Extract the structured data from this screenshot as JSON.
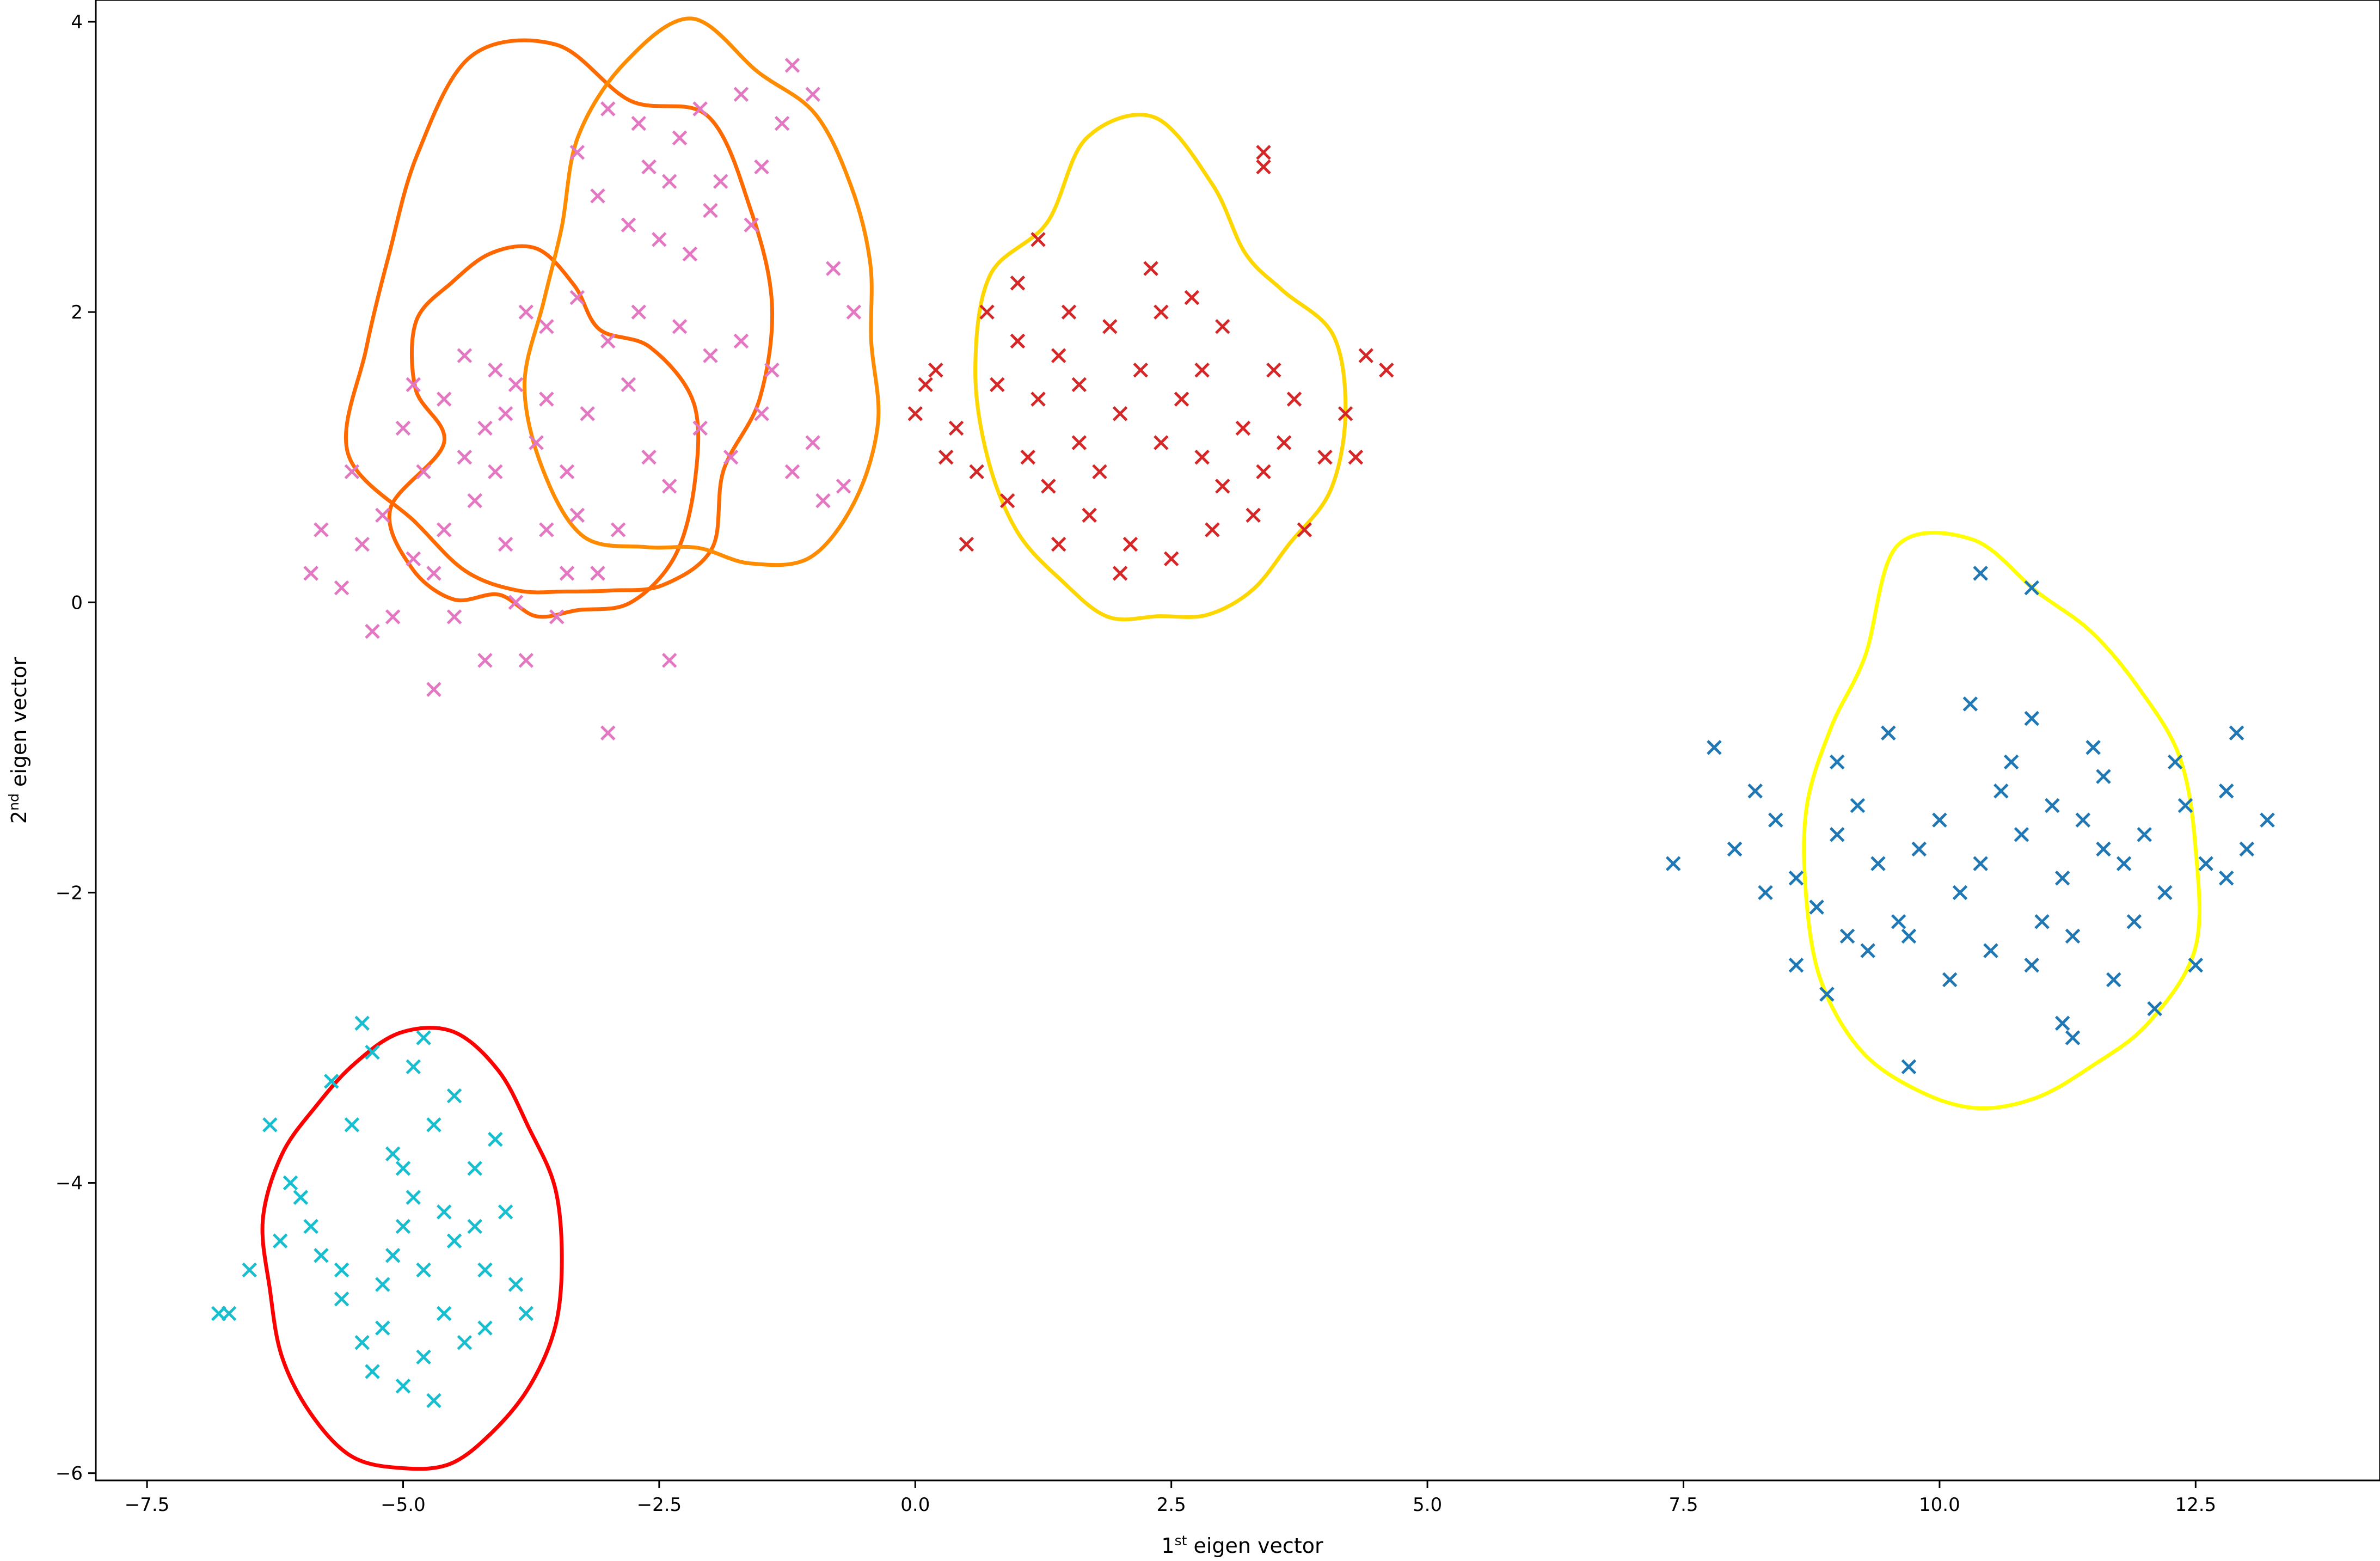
{
  "chart_data": {
    "type": "scatter",
    "xlabel": {
      "base": "1",
      "sup": "st",
      "rest": " eigen vector"
    },
    "ylabel": {
      "base": "2",
      "sup": "nd",
      "rest": " eigen vector"
    },
    "xlim": [
      -8.0,
      14.3
    ],
    "ylim": [
      -6.05,
      4.15
    ],
    "xticks": [
      -7.5,
      -5.0,
      -2.5,
      0.0,
      2.5,
      5.0,
      7.5,
      10.0,
      12.5
    ],
    "xtick_labels": [
      "−7.5",
      "−5.0",
      "−2.5",
      "0.0",
      "2.5",
      "5.0",
      "7.5",
      "10.0",
      "12.5"
    ],
    "yticks": [
      -6,
      -4,
      -2,
      0,
      2,
      4
    ],
    "ytick_labels": [
      "−6",
      "−4",
      "−2",
      "0",
      "2",
      "4"
    ],
    "grid": false,
    "marker": "x",
    "clusters": [
      {
        "color": "#e377c2",
        "center": [
          -3.8,
          1.1
        ],
        "points": [
          [
            -4.2,
            1.2
          ],
          [
            -4.0,
            1.3
          ],
          [
            -4.4,
            1.0
          ],
          [
            -4.1,
            0.9
          ],
          [
            -3.9,
            1.5
          ],
          [
            -4.6,
            1.4
          ],
          [
            -4.3,
            0.7
          ],
          [
            -3.7,
            1.1
          ],
          [
            -4.8,
            0.9
          ],
          [
            -5.0,
            1.2
          ],
          [
            -5.2,
            0.6
          ],
          [
            -4.9,
            0.3
          ],
          [
            -5.4,
            0.4
          ],
          [
            -5.6,
            0.1
          ],
          [
            -5.8,
            0.5
          ],
          [
            -5.3,
            -0.2
          ],
          [
            -4.5,
            -0.1
          ],
          [
            -4.7,
            0.2
          ],
          [
            -3.6,
            0.5
          ],
          [
            -3.3,
            0.6
          ],
          [
            -3.5,
            -0.1
          ],
          [
            -3.1,
            0.2
          ],
          [
            -2.9,
            0.5
          ],
          [
            -3.4,
            0.9
          ],
          [
            -3.2,
            1.3
          ],
          [
            -2.8,
            1.5
          ],
          [
            -2.6,
            1.0
          ],
          [
            -2.4,
            0.8
          ],
          [
            -2.1,
            1.2
          ],
          [
            -1.8,
            1.0
          ],
          [
            -1.5,
            1.3
          ],
          [
            -1.2,
            0.9
          ],
          [
            -0.9,
            0.7
          ],
          [
            -1.0,
            1.1
          ],
          [
            -1.4,
            1.6
          ],
          [
            -1.7,
            1.8
          ],
          [
            -2.0,
            1.7
          ],
          [
            -2.3,
            1.9
          ],
          [
            -2.7,
            2.0
          ],
          [
            -3.0,
            1.8
          ],
          [
            -3.3,
            2.1
          ],
          [
            -3.6,
            1.9
          ],
          [
            -3.8,
            2.0
          ],
          [
            -2.5,
            2.5
          ],
          [
            -2.2,
            2.4
          ],
          [
            -2.0,
            2.7
          ],
          [
            -2.4,
            2.9
          ],
          [
            -2.8,
            2.6
          ],
          [
            -3.1,
            2.8
          ],
          [
            -3.3,
            3.1
          ],
          [
            -2.6,
            3.0
          ],
          [
            -2.3,
            3.2
          ],
          [
            -1.9,
            2.9
          ],
          [
            -1.6,
            2.6
          ],
          [
            -1.5,
            3.0
          ],
          [
            -1.3,
            3.3
          ],
          [
            -1.0,
            3.5
          ],
          [
            -1.2,
            3.7
          ],
          [
            -1.7,
            3.5
          ],
          [
            -2.1,
            3.4
          ],
          [
            -2.7,
            3.3
          ],
          [
            -3.0,
            3.4
          ],
          [
            -0.8,
            2.3
          ],
          [
            -0.6,
            2.0
          ],
          [
            -0.7,
            0.8
          ],
          [
            -4.0,
            0.4
          ],
          [
            -4.4,
            1.7
          ],
          [
            -4.9,
            1.5
          ],
          [
            -5.5,
            0.9
          ],
          [
            -5.9,
            0.2
          ],
          [
            -4.2,
            -0.4
          ],
          [
            -3.8,
            -0.4
          ],
          [
            -3.0,
            -0.9
          ],
          [
            -2.4,
            -0.4
          ],
          [
            -4.7,
            -0.6
          ],
          [
            -3.9,
            0.0
          ],
          [
            -3.6,
            1.4
          ],
          [
            -4.6,
            0.5
          ],
          [
            -4.1,
            1.6
          ],
          [
            -3.4,
            0.2
          ],
          [
            -5.1,
            -0.1
          ]
        ]
      },
      {
        "color": "#d62728",
        "center": [
          2.0,
          1.2
        ],
        "points": [
          [
            0.0,
            1.3
          ],
          [
            0.2,
            1.6
          ],
          [
            0.4,
            1.2
          ],
          [
            0.6,
            0.9
          ],
          [
            0.8,
            1.5
          ],
          [
            1.0,
            1.8
          ],
          [
            1.2,
            1.4
          ],
          [
            1.4,
            1.7
          ],
          [
            1.6,
            1.1
          ],
          [
            1.8,
            0.9
          ],
          [
            2.0,
            1.3
          ],
          [
            2.2,
            1.6
          ],
          [
            2.4,
            2.0
          ],
          [
            2.6,
            1.4
          ],
          [
            2.8,
            1.0
          ],
          [
            3.0,
            0.8
          ],
          [
            3.2,
            1.2
          ],
          [
            3.4,
            0.9
          ],
          [
            3.6,
            1.1
          ],
          [
            3.8,
            0.5
          ],
          [
            4.0,
            1.0
          ],
          [
            4.2,
            1.3
          ],
          [
            4.4,
            1.7
          ],
          [
            4.6,
            1.6
          ],
          [
            0.5,
            0.4
          ],
          [
            0.9,
            0.7
          ],
          [
            1.3,
            0.8
          ],
          [
            1.7,
            0.6
          ],
          [
            2.1,
            0.4
          ],
          [
            2.5,
            0.3
          ],
          [
            2.9,
            0.5
          ],
          [
            3.3,
            0.6
          ],
          [
            1.0,
            2.2
          ],
          [
            1.5,
            2.0
          ],
          [
            1.9,
            1.9
          ],
          [
            2.3,
            2.3
          ],
          [
            2.7,
            2.1
          ],
          [
            3.0,
            1.9
          ],
          [
            3.5,
            1.6
          ],
          [
            0.7,
            2.0
          ],
          [
            1.2,
            2.5
          ],
          [
            3.4,
            3.0
          ],
          [
            3.4,
            3.1
          ],
          [
            1.1,
            1.0
          ],
          [
            1.6,
            1.5
          ],
          [
            2.4,
            1.1
          ],
          [
            2.0,
            0.2
          ],
          [
            0.3,
            1.0
          ],
          [
            0.1,
            1.5
          ],
          [
            3.7,
            1.4
          ],
          [
            4.3,
            1.0
          ],
          [
            2.8,
            1.6
          ],
          [
            1.4,
            0.4
          ]
        ]
      },
      {
        "color": "#1f77b4",
        "center": [
          10.8,
          -2.0
        ],
        "points": [
          [
            7.4,
            -1.8
          ],
          [
            7.8,
            -1.0
          ],
          [
            8.0,
            -1.7
          ],
          [
            8.2,
            -1.3
          ],
          [
            8.4,
            -1.5
          ],
          [
            8.6,
            -1.9
          ],
          [
            8.8,
            -2.1
          ],
          [
            9.0,
            -1.6
          ],
          [
            9.2,
            -1.4
          ],
          [
            9.4,
            -1.8
          ],
          [
            9.6,
            -2.2
          ],
          [
            9.8,
            -1.7
          ],
          [
            10.0,
            -1.5
          ],
          [
            10.2,
            -2.0
          ],
          [
            10.4,
            -1.8
          ],
          [
            10.6,
            -1.3
          ],
          [
            10.8,
            -1.6
          ],
          [
            11.0,
            -2.2
          ],
          [
            11.2,
            -1.9
          ],
          [
            11.4,
            -1.5
          ],
          [
            11.6,
            -1.2
          ],
          [
            11.8,
            -1.8
          ],
          [
            12.0,
            -1.6
          ],
          [
            12.2,
            -2.0
          ],
          [
            12.4,
            -1.4
          ],
          [
            12.6,
            -1.8
          ],
          [
            12.8,
            -1.3
          ],
          [
            13.0,
            -1.7
          ],
          [
            13.2,
            -1.5
          ],
          [
            8.6,
            -2.5
          ],
          [
            8.9,
            -2.7
          ],
          [
            9.3,
            -2.4
          ],
          [
            9.7,
            -2.3
          ],
          [
            10.1,
            -2.6
          ],
          [
            10.5,
            -2.4
          ],
          [
            10.9,
            -2.5
          ],
          [
            11.3,
            -2.3
          ],
          [
            11.7,
            -2.6
          ],
          [
            12.1,
            -2.8
          ],
          [
            12.5,
            -2.5
          ],
          [
            9.0,
            -1.1
          ],
          [
            9.5,
            -0.9
          ],
          [
            10.3,
            -0.7
          ],
          [
            10.9,
            -0.8
          ],
          [
            11.5,
            -1.0
          ],
          [
            12.3,
            -1.1
          ],
          [
            12.9,
            -0.9
          ],
          [
            10.4,
            0.2
          ],
          [
            10.9,
            0.1
          ],
          [
            9.7,
            -3.2
          ],
          [
            11.3,
            -3.0
          ],
          [
            11.2,
            -2.9
          ],
          [
            10.7,
            -1.1
          ],
          [
            11.9,
            -2.2
          ],
          [
            12.8,
            -1.9
          ],
          [
            8.3,
            -2.0
          ],
          [
            9.1,
            -2.3
          ],
          [
            11.1,
            -1.4
          ],
          [
            11.6,
            -1.7
          ]
        ]
      },
      {
        "color": "#17becf",
        "center": [
          -4.9,
          -4.5
        ],
        "points": [
          [
            -6.8,
            -4.9
          ],
          [
            -6.5,
            -4.6
          ],
          [
            -6.2,
            -4.4
          ],
          [
            -6.0,
            -4.1
          ],
          [
            -5.8,
            -4.5
          ],
          [
            -5.6,
            -4.8
          ],
          [
            -5.4,
            -5.1
          ],
          [
            -5.2,
            -4.7
          ],
          [
            -5.0,
            -4.3
          ],
          [
            -4.8,
            -4.6
          ],
          [
            -4.6,
            -4.9
          ],
          [
            -4.4,
            -5.1
          ],
          [
            -4.2,
            -4.6
          ],
          [
            -4.0,
            -4.2
          ],
          [
            -3.9,
            -4.7
          ],
          [
            -4.3,
            -3.9
          ],
          [
            -4.7,
            -3.6
          ],
          [
            -5.1,
            -3.8
          ],
          [
            -5.5,
            -3.6
          ],
          [
            -5.7,
            -3.3
          ],
          [
            -5.3,
            -3.1
          ],
          [
            -4.9,
            -3.2
          ],
          [
            -4.5,
            -3.4
          ],
          [
            -4.1,
            -3.7
          ],
          [
            -6.3,
            -3.6
          ],
          [
            -6.1,
            -4.0
          ],
          [
            -5.9,
            -4.3
          ],
          [
            -5.6,
            -4.6
          ],
          [
            -5.3,
            -5.3
          ],
          [
            -5.0,
            -5.4
          ],
          [
            -4.7,
            -5.5
          ],
          [
            -4.8,
            -5.2
          ],
          [
            -5.2,
            -5.0
          ],
          [
            -4.5,
            -4.4
          ],
          [
            -4.9,
            -4.1
          ],
          [
            -5.0,
            -3.9
          ],
          [
            -4.3,
            -4.3
          ],
          [
            -5.4,
            -2.9
          ],
          [
            -4.8,
            -3.0
          ],
          [
            -4.2,
            -5.0
          ],
          [
            -6.7,
            -4.9
          ],
          [
            -3.8,
            -4.9
          ],
          [
            -5.1,
            -4.5
          ],
          [
            -4.6,
            -4.2
          ]
        ]
      }
    ],
    "contours": [
      {
        "color": "#ff6600",
        "center": [
          -3.8,
          1.1
        ],
        "radius": [
          -0.8,
          -1.14,
          -1.36,
          -1.32,
          -1.35,
          -1.34,
          -1.18,
          -1.06,
          -1.38,
          -1.66,
          -1.67,
          -1.65,
          -1.5,
          -1.26,
          -1.2,
          -1.08,
          -1.29,
          -1.41,
          -1.4
        ]
      },
      {
        "color": "#ff6a00",
        "center": [
          -3.3,
          1.4
        ],
        "radius": [
          1.78,
          2.01,
          2.14,
          2.33,
          2.12,
          2.45,
          2.58,
          2.3,
          2.09,
          2.09,
          2.27,
          1.79,
          1.61,
          1.44,
          1.33,
          1.36,
          1.53,
          1.67,
          1.51
        ]
      },
      {
        "color": "#ff8c00",
        "center": [
          -2.0,
          1.8
        ],
        "radius": [
          1.57,
          1.65,
          1.74,
          1.87,
          1.91,
          2.23,
          2.09,
          1.91,
          1.65,
          1.65,
          1.84,
          1.86,
          1.83,
          1.55,
          1.43,
          1.58,
          1.78,
          1.79,
          1.73
        ]
      },
      {
        "color": "#ffd700",
        "center": [
          2.5,
          1.3
        ],
        "radius": [
          1.7,
          1.67,
          1.38,
          1.32,
          1.63,
          2.05,
          2.07,
          1.79,
          2.01,
          1.94,
          1.82,
          1.71,
          1.57,
          1.53,
          1.4,
          1.43,
          1.45,
          1.46,
          1.64
        ]
      },
      {
        "color": "#ffff00",
        "center": [
          10.5,
          -1.7
        ],
        "radius": [
          2.0,
          1.95,
          1.82,
          1.79,
          1.83,
          2.14,
          2.28,
          1.81,
          1.77,
          1.82,
          1.83,
          1.89,
          1.88,
          1.81,
          1.79,
          1.77,
          1.79,
          1.95,
          2.11
        ]
      },
      {
        "color": "#ff0000",
        "center": [
          -4.9,
          -4.5
        ],
        "radius": [
          1.45,
          1.46,
          1.43,
          1.52,
          1.59,
          1.54,
          1.44,
          1.4,
          1.46,
          1.49,
          1.42,
          1.46,
          1.48,
          1.51,
          1.47,
          1.48,
          1.44,
          1.45,
          1.47
        ]
      }
    ]
  }
}
